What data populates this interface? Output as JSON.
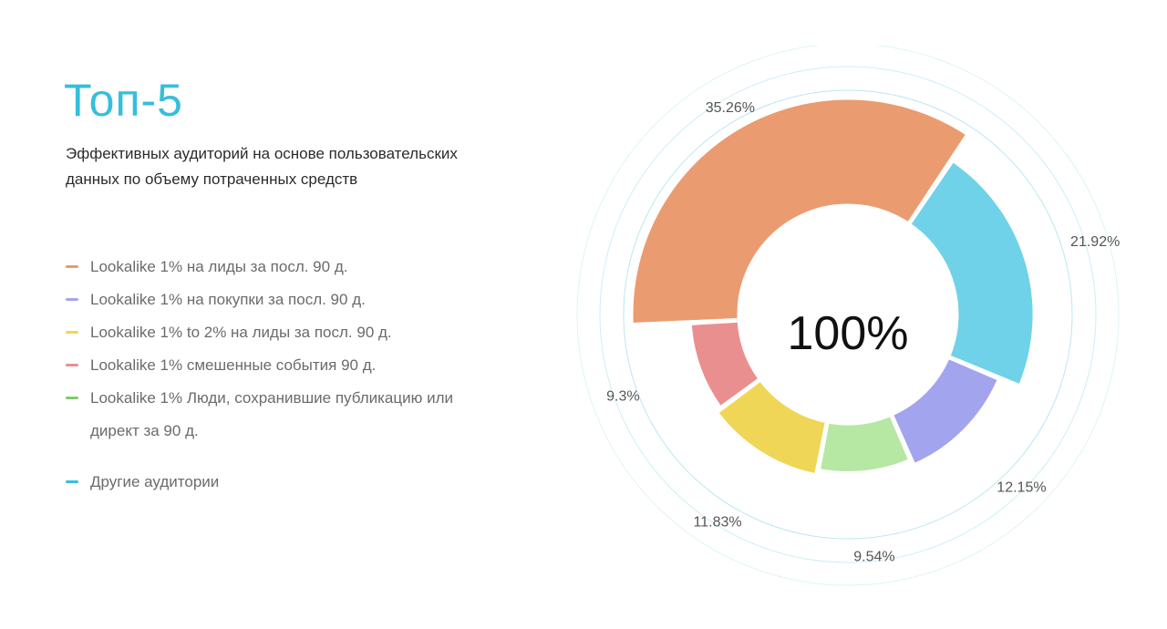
{
  "title": "Топ-5",
  "subtitle": "Эффективных аудиторий на основе пользовательских данных по объему потраченных средств",
  "legend": [
    {
      "label": "Lookalike 1% на лиды за посл. 90 д.",
      "color": "#eb9b70"
    },
    {
      "label": "Lookalike 1% на покупки за посл. 90 д.",
      "color": "#a3a4ee"
    },
    {
      "label": "Lookalike 1% to 2% на лиды за посл. 90 д.",
      "color": "#f0d656"
    },
    {
      "label": "Lookalike 1% смешенные события 90 д.",
      "color": "#e98f8f"
    },
    {
      "label": "Lookalike 1% Люди, сохранившие публикацию или директ за 90 д.",
      "color": "#7dcc6e"
    },
    {
      "label": "Другие аудитории",
      "color": "#36bedc"
    }
  ],
  "chart_data": {
    "type": "pie",
    "center_label": "100%",
    "slices": [
      {
        "value": 35.26,
        "label": "35.26%",
        "color": "#eb9b70"
      },
      {
        "value": 21.92,
        "label": "21.92%",
        "color": "#6fd2e8"
      },
      {
        "value": 12.15,
        "label": "12.15%",
        "color": "#a3a4ee"
      },
      {
        "value": 9.54,
        "label": "9.54%",
        "color": "#b6e8a4"
      },
      {
        "value": 11.83,
        "label": "11.83%",
        "color": "#f0d656"
      },
      {
        "value": 9.3,
        "label": "9.3%",
        "color": "#e98f8f"
      }
    ]
  }
}
